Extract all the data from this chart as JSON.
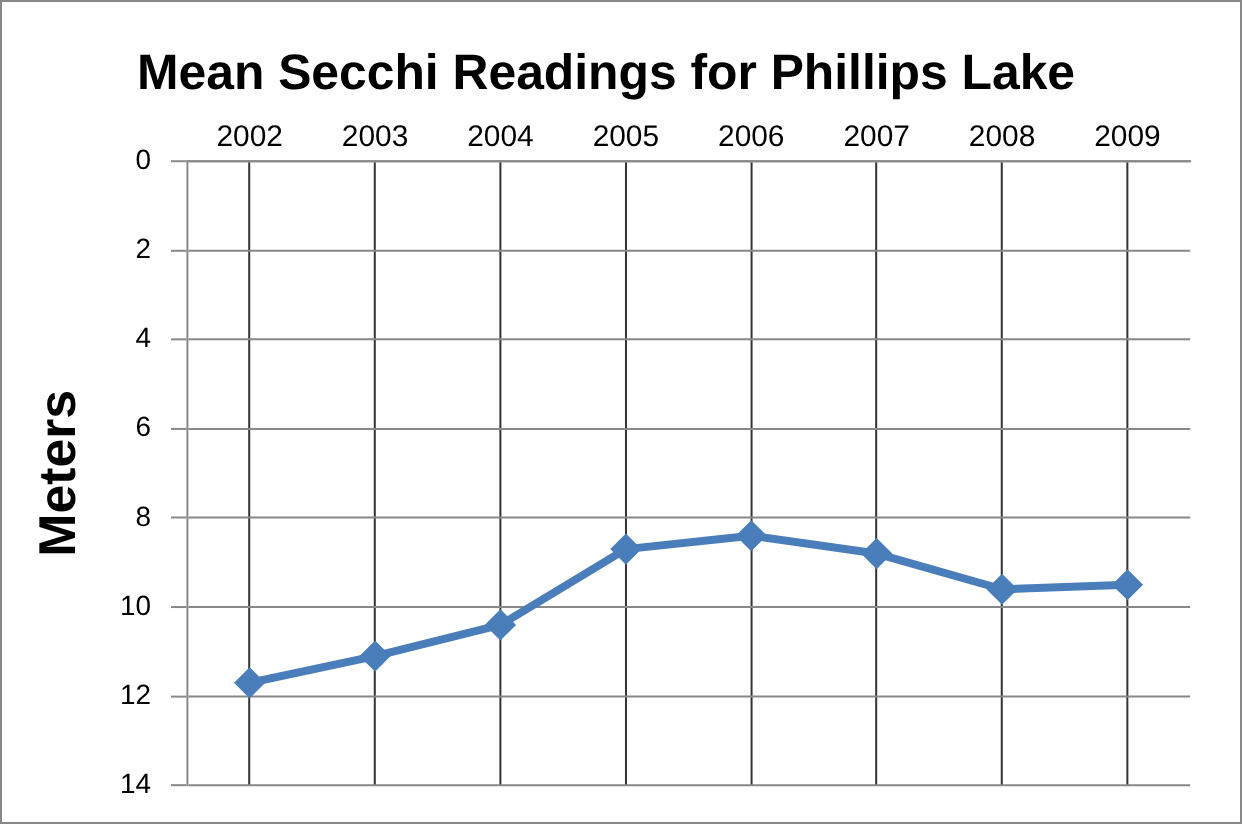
{
  "chart_data": {
    "type": "line",
    "title": "Mean Secchi Readings for Phillips Lake",
    "ylabel": "Meters",
    "categories": [
      "2002",
      "2003",
      "2004",
      "2005",
      "2006",
      "2007",
      "2008",
      "2009"
    ],
    "series": [
      {
        "color": "#4a7ebb",
        "values": [
          11.7,
          11.1,
          10.4,
          8.7,
          8.4,
          8.8,
          9.6,
          9.5
        ]
      }
    ],
    "ylim": [
      14,
      0
    ],
    "yticks": [
      0,
      2,
      4,
      6,
      8,
      10,
      12,
      14
    ],
    "grid": true,
    "marker": "diamond",
    "line_style": "solid",
    "legend": false
  }
}
